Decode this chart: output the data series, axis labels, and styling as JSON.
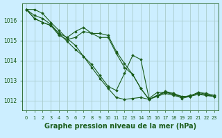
{
  "background_color": "#cceeff",
  "grid_color": "#aacccc",
  "line_color": "#1a5c1a",
  "marker_color": "#1a5c1a",
  "xlabel": "Graphe pression niveau de la mer (hPa)",
  "xlabel_fontsize": 7,
  "xlabel_color": "#1a5c1a",
  "ytick_color": "#1a5c1a",
  "xtick_color": "#1a5c1a",
  "ylim": [
    1011.5,
    1016.85
  ],
  "xlim": [
    -0.5,
    23.5
  ],
  "yticks": [
    1012,
    1013,
    1014,
    1015,
    1016
  ],
  "xticks": [
    0,
    1,
    2,
    3,
    4,
    5,
    6,
    7,
    8,
    9,
    10,
    11,
    12,
    13,
    14,
    15,
    16,
    17,
    18,
    19,
    20,
    21,
    22,
    23
  ],
  "series": [
    [
      1016.55,
      1016.55,
      1016.35,
      1015.9,
      1015.5,
      1015.1,
      1014.75,
      1014.2,
      1013.65,
      1013.1,
      1012.6,
      1012.15,
      1012.05,
      1012.1,
      1012.15,
      1012.05,
      1012.2,
      1012.35,
      1012.25,
      1012.15,
      1012.25,
      1012.35,
      1012.25,
      1012.2
    ],
    [
      1016.55,
      1016.25,
      1016.1,
      1015.8,
      1015.35,
      1014.95,
      1014.55,
      1014.2,
      1013.8,
      1013.25,
      1012.7,
      1012.5,
      1013.35,
      1014.25,
      1014.05,
      1012.1,
      1012.4,
      1012.4,
      1012.35,
      1012.1,
      1012.2,
      1012.3,
      1012.25,
      1012.2
    ],
    [
      1016.55,
      1016.1,
      1015.9,
      1015.75,
      1015.25,
      1015.05,
      1015.15,
      1015.45,
      1015.35,
      1015.15,
      1015.15,
      1014.35,
      1013.65,
      1013.3,
      1012.6,
      1012.05,
      1012.25,
      1012.4,
      1012.3,
      1012.2,
      1012.2,
      1012.4,
      1012.35,
      1012.25
    ],
    [
      1016.55,
      1016.1,
      1015.9,
      1015.75,
      1015.35,
      1015.15,
      1015.45,
      1015.65,
      1015.35,
      1015.35,
      1015.25,
      1014.45,
      1013.85,
      1013.3,
      1012.6,
      1012.05,
      1012.25,
      1012.45,
      1012.35,
      1012.2,
      1012.2,
      1012.4,
      1012.3,
      1012.2
    ]
  ]
}
